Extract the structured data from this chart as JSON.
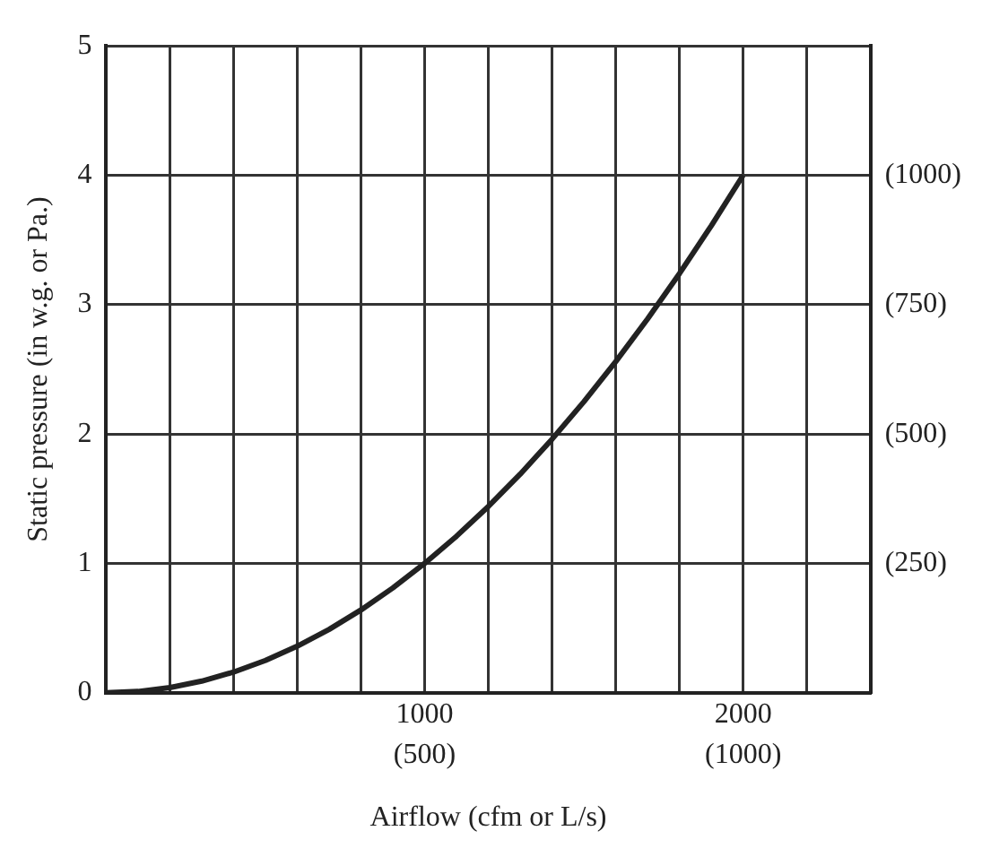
{
  "chart_data": {
    "type": "line",
    "xlabel": "Airflow (cfm or L/s)",
    "ylabel": "Static pressure (in w.g. or Pa.)",
    "x": [
      0,
      100,
      200,
      300,
      400,
      500,
      600,
      700,
      800,
      900,
      1000,
      1100,
      1200,
      1300,
      1400,
      1500,
      1600,
      1700,
      1800,
      1900,
      2000
    ],
    "series": [
      {
        "color": "#222222",
        "values": [
          0,
          0.01,
          0.04,
          0.09,
          0.16,
          0.25,
          0.36,
          0.49,
          0.64,
          0.81,
          1,
          1.21,
          1.44,
          1.69,
          1.96,
          2.25,
          2.56,
          2.89,
          3.24,
          3.61,
          4
        ]
      }
    ],
    "xlim": [
      0,
      2400
    ],
    "xticks": [
      {
        "value": 0,
        "label": null
      },
      {
        "value": 200,
        "label": null
      },
      {
        "value": 400,
        "label": null
      },
      {
        "value": 600,
        "label": null
      },
      {
        "value": 800,
        "label": null
      },
      1000,
      {
        "value": 1200,
        "label": null
      },
      {
        "value": 1400,
        "label": null
      },
      {
        "value": 1600,
        "label": null
      },
      {
        "value": 1800,
        "label": null
      },
      2000,
      {
        "value": 2200,
        "label": null
      },
      {
        "value": 2400,
        "label": null
      }
    ],
    "x2lim": [
      0,
      1200
    ],
    "x2ticks": [
      {
        "value": 500,
        "label": "(500)"
      },
      {
        "value": 1000,
        "label": "(1000)"
      }
    ],
    "ylim": [
      0,
      5
    ],
    "yticks": [
      0,
      1,
      2,
      3,
      4,
      5
    ],
    "y2lim": [
      0,
      1250
    ],
    "y2ticks": [
      {
        "value": 250,
        "label": "(250)"
      },
      {
        "value": 500,
        "label": "(500)"
      },
      {
        "value": 750,
        "label": "(750)"
      },
      {
        "value": 1000,
        "label": "(1000)"
      }
    ],
    "grid": true,
    "marker": "none",
    "line_style": "solid",
    "legend": false
  }
}
